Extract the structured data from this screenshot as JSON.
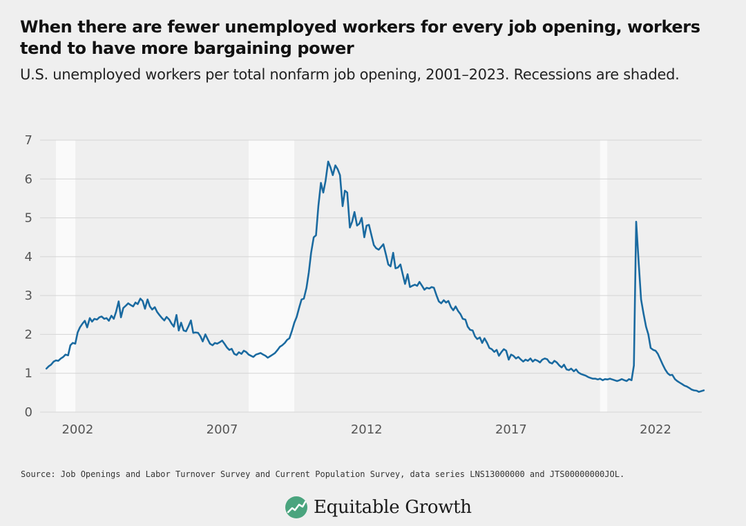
{
  "title": "When there are fewer unemployed workers for every job opening, workers tend to have more bargaining power",
  "subtitle": "U.S. unemployed workers per total nonfarm job opening, 2001–2023. Recessions are shaded.",
  "source": "Source: Job Openings and Labor Turnover Survey and Current Population Survey, data series LNS13000000 and JTS00000000JOL.",
  "logo": {
    "text": "Equitable Growth",
    "icon": "equitable-growth-logo-icon",
    "color": "#4aa47e"
  },
  "chart_data": {
    "type": "line",
    "title": "When there are fewer unemployed workers for every job opening, workers tend to have more bargaining power",
    "subtitle": "U.S. unemployed workers per total nonfarm job opening, 2001–2023. Recessions are shaded.",
    "xlabel": "",
    "ylabel": "",
    "xlim": [
      2000.7,
      2023.6
    ],
    "ylim": [
      0,
      7
    ],
    "x_ticks": [
      2002,
      2007,
      2012,
      2017,
      2022
    ],
    "y_ticks": [
      0,
      1,
      2,
      3,
      4,
      5,
      6,
      7
    ],
    "grid": "horizontal",
    "line_color": "#1a6aa0",
    "recession_color": "#fafafa",
    "recessions": [
      [
        2001.25,
        2001.92
      ],
      [
        2007.92,
        2009.5
      ],
      [
        2020.08,
        2020.33
      ]
    ],
    "series": [
      {
        "values": [
          [
            2000.92,
            1.12
          ],
          [
            2001.0,
            1.18
          ],
          [
            2001.08,
            1.22
          ],
          [
            2001.17,
            1.3
          ],
          [
            2001.25,
            1.33
          ],
          [
            2001.33,
            1.32
          ],
          [
            2001.42,
            1.38
          ],
          [
            2001.5,
            1.42
          ],
          [
            2001.58,
            1.48
          ],
          [
            2001.67,
            1.46
          ],
          [
            2001.75,
            1.72
          ],
          [
            2001.83,
            1.78
          ],
          [
            2001.92,
            1.76
          ],
          [
            2002.0,
            2.05
          ],
          [
            2002.08,
            2.18
          ],
          [
            2002.17,
            2.28
          ],
          [
            2002.25,
            2.35
          ],
          [
            2002.33,
            2.18
          ],
          [
            2002.42,
            2.42
          ],
          [
            2002.5,
            2.33
          ],
          [
            2002.58,
            2.4
          ],
          [
            2002.67,
            2.38
          ],
          [
            2002.75,
            2.44
          ],
          [
            2002.83,
            2.46
          ],
          [
            2002.92,
            2.4
          ],
          [
            2003.0,
            2.42
          ],
          [
            2003.08,
            2.35
          ],
          [
            2003.17,
            2.48
          ],
          [
            2003.25,
            2.4
          ],
          [
            2003.33,
            2.58
          ],
          [
            2003.42,
            2.85
          ],
          [
            2003.5,
            2.44
          ],
          [
            2003.58,
            2.68
          ],
          [
            2003.67,
            2.74
          ],
          [
            2003.75,
            2.8
          ],
          [
            2003.83,
            2.76
          ],
          [
            2003.92,
            2.72
          ],
          [
            2004.0,
            2.82
          ],
          [
            2004.08,
            2.78
          ],
          [
            2004.17,
            2.92
          ],
          [
            2004.25,
            2.86
          ],
          [
            2004.33,
            2.66
          ],
          [
            2004.42,
            2.9
          ],
          [
            2004.5,
            2.72
          ],
          [
            2004.58,
            2.64
          ],
          [
            2004.67,
            2.7
          ],
          [
            2004.75,
            2.58
          ],
          [
            2004.83,
            2.5
          ],
          [
            2004.92,
            2.42
          ],
          [
            2005.0,
            2.36
          ],
          [
            2005.08,
            2.45
          ],
          [
            2005.17,
            2.38
          ],
          [
            2005.25,
            2.28
          ],
          [
            2005.33,
            2.2
          ],
          [
            2005.42,
            2.5
          ],
          [
            2005.5,
            2.1
          ],
          [
            2005.58,
            2.3
          ],
          [
            2005.67,
            2.1
          ],
          [
            2005.75,
            2.08
          ],
          [
            2005.83,
            2.2
          ],
          [
            2005.92,
            2.36
          ],
          [
            2006.0,
            2.04
          ],
          [
            2006.08,
            2.05
          ],
          [
            2006.17,
            2.04
          ],
          [
            2006.25,
            1.95
          ],
          [
            2006.33,
            1.82
          ],
          [
            2006.42,
            2.0
          ],
          [
            2006.5,
            1.88
          ],
          [
            2006.58,
            1.76
          ],
          [
            2006.67,
            1.72
          ],
          [
            2006.75,
            1.78
          ],
          [
            2006.83,
            1.76
          ],
          [
            2006.92,
            1.8
          ],
          [
            2007.0,
            1.84
          ],
          [
            2007.08,
            1.76
          ],
          [
            2007.17,
            1.66
          ],
          [
            2007.25,
            1.6
          ],
          [
            2007.33,
            1.63
          ],
          [
            2007.42,
            1.5
          ],
          [
            2007.5,
            1.47
          ],
          [
            2007.58,
            1.54
          ],
          [
            2007.67,
            1.5
          ],
          [
            2007.75,
            1.58
          ],
          [
            2007.83,
            1.55
          ],
          [
            2007.92,
            1.48
          ],
          [
            2008.0,
            1.45
          ],
          [
            2008.08,
            1.42
          ],
          [
            2008.17,
            1.48
          ],
          [
            2008.25,
            1.5
          ],
          [
            2008.33,
            1.52
          ],
          [
            2008.42,
            1.48
          ],
          [
            2008.5,
            1.45
          ],
          [
            2008.58,
            1.4
          ],
          [
            2008.67,
            1.44
          ],
          [
            2008.75,
            1.48
          ],
          [
            2008.83,
            1.52
          ],
          [
            2008.92,
            1.6
          ],
          [
            2009.0,
            1.68
          ],
          [
            2009.08,
            1.72
          ],
          [
            2009.17,
            1.78
          ],
          [
            2009.25,
            1.86
          ],
          [
            2009.33,
            1.9
          ],
          [
            2009.42,
            2.1
          ],
          [
            2009.5,
            2.3
          ],
          [
            2009.58,
            2.45
          ],
          [
            2009.67,
            2.7
          ],
          [
            2009.75,
            2.9
          ],
          [
            2009.83,
            2.92
          ],
          [
            2009.92,
            3.2
          ],
          [
            2010.0,
            3.6
          ],
          [
            2010.08,
            4.1
          ],
          [
            2010.17,
            4.5
          ],
          [
            2010.25,
            4.55
          ],
          [
            2010.33,
            5.3
          ],
          [
            2010.42,
            5.9
          ],
          [
            2010.5,
            5.65
          ],
          [
            2010.58,
            5.95
          ],
          [
            2010.67,
            6.45
          ],
          [
            2010.75,
            6.3
          ],
          [
            2010.83,
            6.1
          ],
          [
            2010.92,
            6.35
          ],
          [
            2011.0,
            6.25
          ],
          [
            2011.08,
            6.1
          ],
          [
            2011.17,
            5.3
          ],
          [
            2011.25,
            5.7
          ],
          [
            2011.33,
            5.65
          ],
          [
            2011.42,
            4.75
          ],
          [
            2011.5,
            4.9
          ],
          [
            2011.58,
            5.15
          ],
          [
            2011.67,
            4.8
          ],
          [
            2011.75,
            4.85
          ],
          [
            2011.83,
            5.0
          ],
          [
            2011.92,
            4.5
          ],
          [
            2012.0,
            4.8
          ],
          [
            2012.08,
            4.82
          ],
          [
            2012.17,
            4.55
          ],
          [
            2012.25,
            4.3
          ],
          [
            2012.33,
            4.22
          ],
          [
            2012.42,
            4.18
          ],
          [
            2012.5,
            4.25
          ],
          [
            2012.58,
            4.32
          ],
          [
            2012.67,
            4.05
          ],
          [
            2012.75,
            3.8
          ],
          [
            2012.83,
            3.75
          ],
          [
            2012.92,
            4.1
          ],
          [
            2013.0,
            3.7
          ],
          [
            2013.08,
            3.72
          ],
          [
            2013.17,
            3.8
          ],
          [
            2013.25,
            3.55
          ],
          [
            2013.33,
            3.3
          ],
          [
            2013.42,
            3.55
          ],
          [
            2013.5,
            3.22
          ],
          [
            2013.58,
            3.25
          ],
          [
            2013.67,
            3.28
          ],
          [
            2013.75,
            3.25
          ],
          [
            2013.83,
            3.35
          ],
          [
            2013.92,
            3.25
          ],
          [
            2014.0,
            3.15
          ],
          [
            2014.08,
            3.2
          ],
          [
            2014.17,
            3.18
          ],
          [
            2014.25,
            3.22
          ],
          [
            2014.33,
            3.2
          ],
          [
            2014.42,
            3.0
          ],
          [
            2014.5,
            2.85
          ],
          [
            2014.58,
            2.8
          ],
          [
            2014.67,
            2.88
          ],
          [
            2014.75,
            2.82
          ],
          [
            2014.83,
            2.86
          ],
          [
            2014.92,
            2.7
          ],
          [
            2015.0,
            2.62
          ],
          [
            2015.08,
            2.72
          ],
          [
            2015.17,
            2.6
          ],
          [
            2015.25,
            2.52
          ],
          [
            2015.33,
            2.4
          ],
          [
            2015.42,
            2.38
          ],
          [
            2015.5,
            2.2
          ],
          [
            2015.58,
            2.12
          ],
          [
            2015.67,
            2.1
          ],
          [
            2015.75,
            1.95
          ],
          [
            2015.83,
            1.88
          ],
          [
            2015.92,
            1.92
          ],
          [
            2016.0,
            1.78
          ],
          [
            2016.08,
            1.9
          ],
          [
            2016.17,
            1.78
          ],
          [
            2016.25,
            1.65
          ],
          [
            2016.33,
            1.62
          ],
          [
            2016.42,
            1.55
          ],
          [
            2016.5,
            1.6
          ],
          [
            2016.58,
            1.45
          ],
          [
            2016.67,
            1.55
          ],
          [
            2016.75,
            1.62
          ],
          [
            2016.83,
            1.58
          ],
          [
            2016.92,
            1.35
          ],
          [
            2017.0,
            1.48
          ],
          [
            2017.08,
            1.45
          ],
          [
            2017.17,
            1.38
          ],
          [
            2017.25,
            1.42
          ],
          [
            2017.33,
            1.36
          ],
          [
            2017.42,
            1.3
          ],
          [
            2017.5,
            1.35
          ],
          [
            2017.58,
            1.32
          ],
          [
            2017.67,
            1.38
          ],
          [
            2017.75,
            1.3
          ],
          [
            2017.83,
            1.35
          ],
          [
            2017.92,
            1.32
          ],
          [
            2018.0,
            1.28
          ],
          [
            2018.08,
            1.35
          ],
          [
            2018.17,
            1.38
          ],
          [
            2018.25,
            1.36
          ],
          [
            2018.33,
            1.28
          ],
          [
            2018.42,
            1.25
          ],
          [
            2018.5,
            1.32
          ],
          [
            2018.58,
            1.28
          ],
          [
            2018.67,
            1.2
          ],
          [
            2018.75,
            1.15
          ],
          [
            2018.83,
            1.22
          ],
          [
            2018.92,
            1.1
          ],
          [
            2019.0,
            1.08
          ],
          [
            2019.08,
            1.12
          ],
          [
            2019.17,
            1.05
          ],
          [
            2019.25,
            1.1
          ],
          [
            2019.33,
            1.02
          ],
          [
            2019.42,
            0.98
          ],
          [
            2019.5,
            0.96
          ],
          [
            2019.58,
            0.94
          ],
          [
            2019.67,
            0.9
          ],
          [
            2019.75,
            0.88
          ],
          [
            2019.83,
            0.86
          ],
          [
            2019.92,
            0.86
          ],
          [
            2020.0,
            0.84
          ],
          [
            2020.08,
            0.86
          ],
          [
            2020.17,
            0.82
          ],
          [
            2020.25,
            0.85
          ],
          [
            2020.33,
            0.84
          ],
          [
            2020.42,
            0.86
          ],
          [
            2020.5,
            0.84
          ],
          [
            2020.58,
            0.82
          ],
          [
            2020.67,
            0.8
          ],
          [
            2020.75,
            0.82
          ],
          [
            2020.83,
            0.85
          ],
          [
            2020.92,
            0.82
          ],
          [
            2021.0,
            0.8
          ],
          [
            2021.08,
            0.85
          ],
          [
            2021.17,
            0.82
          ],
          [
            2021.25,
            1.2
          ],
          [
            2021.33,
            4.9
          ],
          [
            2021.42,
            3.8
          ],
          [
            2021.5,
            2.9
          ],
          [
            2021.58,
            2.55
          ],
          [
            2021.67,
            2.2
          ],
          [
            2021.75,
            2.0
          ],
          [
            2021.83,
            1.65
          ],
          [
            2021.92,
            1.6
          ],
          [
            2022.0,
            1.58
          ],
          [
            2022.08,
            1.5
          ],
          [
            2022.17,
            1.35
          ],
          [
            2022.25,
            1.22
          ],
          [
            2022.33,
            1.1
          ],
          [
            2022.42,
            1.0
          ],
          [
            2022.5,
            0.95
          ],
          [
            2022.58,
            0.96
          ],
          [
            2022.67,
            0.85
          ],
          [
            2022.75,
            0.8
          ],
          [
            2022.83,
            0.76
          ],
          [
            2022.92,
            0.72
          ],
          [
            2023.0,
            0.68
          ],
          [
            2023.08,
            0.66
          ],
          [
            2023.17,
            0.62
          ],
          [
            2023.25,
            0.58
          ],
          [
            2023.33,
            0.56
          ],
          [
            2023.42,
            0.55
          ],
          [
            2023.5,
            0.52
          ],
          [
            2023.58,
            0.54
          ],
          [
            2023.67,
            0.56
          ]
        ]
      }
    ]
  }
}
